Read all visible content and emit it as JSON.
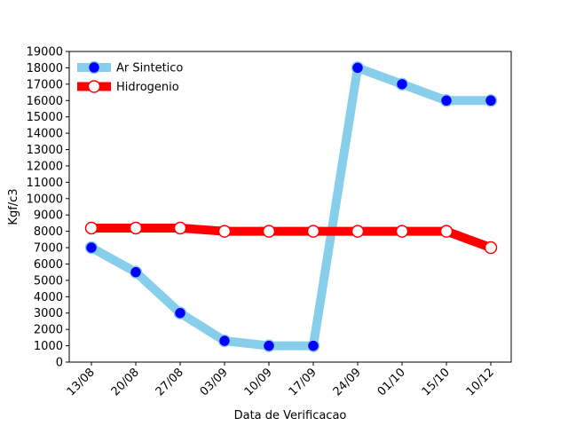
{
  "chart_data": {
    "type": "line",
    "title": "",
    "xlabel": "Data de Verificacao",
    "ylabel": "Kgf/c3",
    "categories": [
      "13/08",
      "20/08",
      "27/08",
      "03/09",
      "10/09",
      "17/09",
      "24/09",
      "01/10",
      "15/10",
      "10/12"
    ],
    "ylim": [
      0,
      19000
    ],
    "yticks": [
      0,
      1000,
      2000,
      3000,
      4000,
      5000,
      6000,
      7000,
      8000,
      9000,
      10000,
      11000,
      12000,
      13000,
      14000,
      15000,
      16000,
      17000,
      18000,
      19000
    ],
    "grid": false,
    "legend_position": "top-left",
    "series": [
      {
        "name": "Ar Sintetico",
        "values": [
          7000,
          5500,
          3000,
          1300,
          1000,
          1000,
          18000,
          17000,
          16000,
          16000
        ],
        "line_color": "#87ceeb",
        "marker_face": "#0000ff",
        "marker_edge": "#87ceeb"
      },
      {
        "name": "Hidrogenio",
        "values": [
          8200,
          8200,
          8200,
          8000,
          8000,
          8000,
          8000,
          8000,
          8000,
          7000
        ],
        "line_color": "#ff0000",
        "marker_face": "#ffffff",
        "marker_edge": "#ff0000"
      }
    ]
  }
}
